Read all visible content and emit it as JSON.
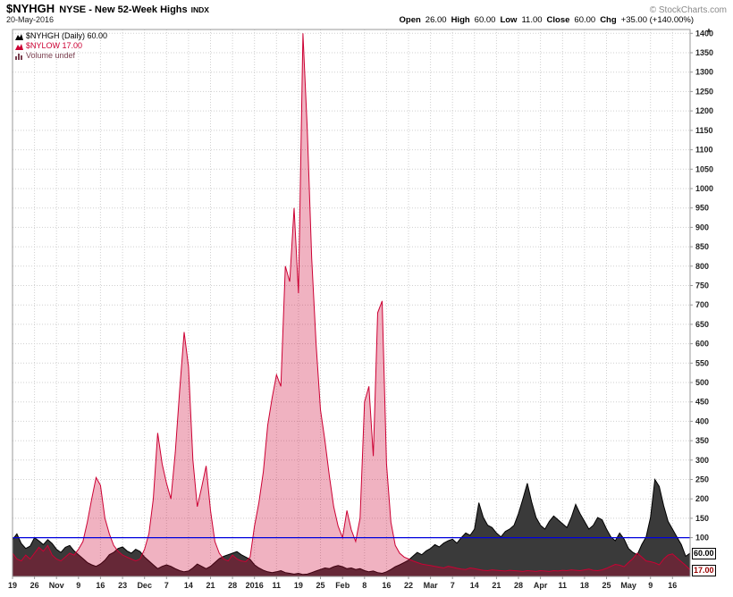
{
  "header": {
    "symbol": "$NYHGH",
    "exchange_name": "NYSE - New 52-Week Highs",
    "index_tag": "INDX",
    "copyright": "© StockCharts.com",
    "date": "20-May-2016",
    "quote": {
      "open_label": "Open",
      "open": "26.00",
      "high_label": "High",
      "high": "60.00",
      "low_label": "Low",
      "low": "11.00",
      "close_label": "Close",
      "close": "60.00",
      "chg_label": "Chg",
      "chg": "+35.00 (+140.00%)"
    }
  },
  "icons": {
    "scale_up_arrow": "▲"
  },
  "legend": {
    "items": [
      {
        "label": "$NYHGH (Daily) 60.00",
        "color": "#000000"
      },
      {
        "label": "$NYLOW 17.00",
        "color": "#cc0033"
      },
      {
        "label": "Volume undef",
        "color": "#7a4050"
      }
    ]
  },
  "value_tags": [
    {
      "text": "60.00",
      "value": 60,
      "color": "#000000"
    },
    {
      "text": "17.00",
      "value": 17,
      "color": "#990000"
    }
  ],
  "chart_data": {
    "type": "area",
    "title": "$NYHGH NYSE - New 52-Week Highs INDX",
    "subtitle": "20-May-2016",
    "ylim": [
      0,
      1410
    ],
    "grid": true,
    "legend_position": "top-left",
    "hline": {
      "value": 100,
      "color": "#0000dd"
    },
    "y_ticks": [
      100,
      150,
      200,
      250,
      300,
      350,
      400,
      450,
      500,
      550,
      600,
      650,
      700,
      750,
      800,
      850,
      900,
      950,
      1000,
      1050,
      1100,
      1150,
      1200,
      1250,
      1300,
      1350,
      1400
    ],
    "x_ticks": [
      {
        "i": 0,
        "label": "19",
        "bold": false
      },
      {
        "i": 5,
        "label": "26",
        "bold": false
      },
      {
        "i": 10,
        "label": "Nov",
        "bold": true
      },
      {
        "i": 15,
        "label": "9",
        "bold": false
      },
      {
        "i": 20,
        "label": "16",
        "bold": false
      },
      {
        "i": 25,
        "label": "23",
        "bold": false
      },
      {
        "i": 30,
        "label": "Dec",
        "bold": true
      },
      {
        "i": 35,
        "label": "7",
        "bold": false
      },
      {
        "i": 40,
        "label": "14",
        "bold": false
      },
      {
        "i": 45,
        "label": "21",
        "bold": false
      },
      {
        "i": 50,
        "label": "28",
        "bold": false
      },
      {
        "i": 55,
        "label": "2016",
        "bold": true
      },
      {
        "i": 60,
        "label": "11",
        "bold": false
      },
      {
        "i": 65,
        "label": "19",
        "bold": false
      },
      {
        "i": 70,
        "label": "25",
        "bold": false
      },
      {
        "i": 75,
        "label": "Feb",
        "bold": true
      },
      {
        "i": 80,
        "label": "8",
        "bold": false
      },
      {
        "i": 85,
        "label": "16",
        "bold": false
      },
      {
        "i": 90,
        "label": "22",
        "bold": false
      },
      {
        "i": 95,
        "label": "Mar",
        "bold": true
      },
      {
        "i": 100,
        "label": "7",
        "bold": false
      },
      {
        "i": 105,
        "label": "14",
        "bold": false
      },
      {
        "i": 110,
        "label": "21",
        "bold": false
      },
      {
        "i": 115,
        "label": "28",
        "bold": false
      },
      {
        "i": 120,
        "label": "Apr",
        "bold": true
      },
      {
        "i": 125,
        "label": "11",
        "bold": false
      },
      {
        "i": 130,
        "label": "18",
        "bold": false
      },
      {
        "i": 135,
        "label": "25",
        "bold": false
      },
      {
        "i": 140,
        "label": "May",
        "bold": true
      },
      {
        "i": 145,
        "label": "9",
        "bold": false
      },
      {
        "i": 150,
        "label": "16",
        "bold": false
      }
    ],
    "series": [
      {
        "name": "$NYHGH",
        "stroke": "#000000",
        "fill": "#3a3a3a",
        "fill_opacity": 1,
        "last_value": 60,
        "values": [
          95,
          110,
          85,
          72,
          78,
          100,
          92,
          82,
          95,
          85,
          70,
          62,
          75,
          80,
          66,
          56,
          46,
          36,
          30,
          26,
          32,
          42,
          56,
          62,
          72,
          76,
          66,
          60,
          70,
          64,
          50,
          40,
          30,
          20,
          26,
          30,
          26,
          20,
          15,
          12,
          14,
          22,
          32,
          26,
          20,
          26,
          36,
          46,
          52,
          56,
          60,
          64,
          56,
          50,
          44,
          30,
          22,
          16,
          12,
          10,
          12,
          15,
          10,
          8,
          6,
          8,
          5,
          6,
          10,
          14,
          18,
          22,
          20,
          25,
          28,
          25,
          20,
          22,
          18,
          20,
          15,
          12,
          14,
          10,
          8,
          12,
          18,
          25,
          30,
          36,
          42,
          52,
          62,
          56,
          66,
          72,
          82,
          76,
          86,
          92,
          96,
          86,
          100,
          112,
          106,
          122,
          190,
          152,
          132,
          126,
          112,
          102,
          116,
          122,
          132,
          162,
          200,
          240,
          192,
          152,
          132,
          122,
          142,
          156,
          146,
          136,
          126,
          152,
          186,
          162,
          142,
          122,
          132,
          152,
          146,
          122,
          102,
          92,
          112,
          96,
          72,
          62,
          56,
          82,
          102,
          152,
          250,
          232,
          182,
          142,
          122,
          102,
          82,
          52,
          60
        ]
      },
      {
        "name": "$NYLOW",
        "stroke": "#cc0033",
        "fill": "#cc0033",
        "fill_opacity": 0.3,
        "last_value": 17,
        "values": [
          60,
          45,
          40,
          55,
          45,
          60,
          75,
          65,
          80,
          55,
          45,
          40,
          50,
          60,
          55,
          70,
          90,
          140,
          200,
          255,
          235,
          150,
          110,
          80,
          65,
          55,
          50,
          45,
          40,
          45,
          70,
          110,
          200,
          370,
          290,
          240,
          200,
          320,
          480,
          630,
          540,
          300,
          180,
          230,
          285,
          170,
          90,
          60,
          45,
          40,
          55,
          45,
          40,
          38,
          50,
          130,
          190,
          270,
          390,
          460,
          520,
          490,
          800,
          760,
          950,
          730,
          1400,
          1150,
          820,
          600,
          430,
          350,
          260,
          180,
          130,
          100,
          170,
          120,
          90,
          150,
          450,
          490,
          310,
          680,
          710,
          290,
          140,
          80,
          60,
          50,
          45,
          40,
          36,
          32,
          30,
          28,
          26,
          24,
          22,
          26,
          24,
          21,
          19,
          18,
          22,
          20,
          18,
          16,
          15,
          17,
          16,
          15,
          14,
          16,
          15,
          14,
          13,
          15,
          14,
          13,
          15,
          14,
          13,
          15,
          14,
          16,
          15,
          17,
          16,
          15,
          17,
          19,
          16,
          15,
          17,
          21,
          26,
          31,
          29,
          25,
          36,
          46,
          60,
          50,
          40,
          38,
          35,
          30,
          45,
          55,
          58,
          48,
          38,
          28,
          17
        ]
      }
    ]
  }
}
